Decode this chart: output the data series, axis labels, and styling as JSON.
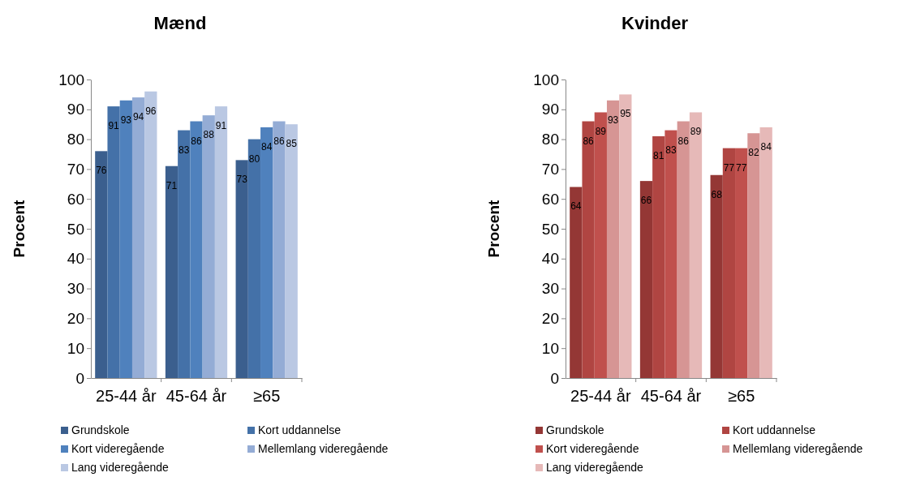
{
  "chart_data": [
    {
      "type": "bar",
      "title": "Mænd",
      "ylabel": "Procent",
      "categories": [
        "25-44 år",
        "45-64 år",
        "≥65"
      ],
      "ylim": [
        0,
        100
      ],
      "yticks": [
        0,
        10,
        20,
        30,
        40,
        50,
        60,
        70,
        80,
        90,
        100
      ],
      "grid": false,
      "legend": "bottom",
      "data_labels": true,
      "series": [
        {
          "name": "Grundskole",
          "color": "#3b5f8e",
          "values": [
            76,
            71,
            73
          ]
        },
        {
          "name": "Kort uddannelse",
          "color": "#4471a8",
          "values": [
            91,
            83,
            80
          ]
        },
        {
          "name": "Kort videregående",
          "color": "#4f81bd",
          "values": [
            93,
            86,
            84
          ]
        },
        {
          "name": "Mellemlang videregående",
          "color": "#94acd5",
          "values": [
            94,
            88,
            86
          ]
        },
        {
          "name": "Lang videregående",
          "color": "#bac8e3",
          "values": [
            96,
            91,
            85
          ]
        }
      ]
    },
    {
      "type": "bar",
      "title": "Kvinder",
      "ylabel": "Procent",
      "categories": [
        "25-44 år",
        "45-64 år",
        "≥65"
      ],
      "ylim": [
        0,
        100
      ],
      "yticks": [
        0,
        10,
        20,
        30,
        40,
        50,
        60,
        70,
        80,
        90,
        100
      ],
      "grid": false,
      "legend": "bottom",
      "data_labels": true,
      "series": [
        {
          "name": "Grundskole",
          "color": "#943735",
          "values": [
            64,
            66,
            68
          ]
        },
        {
          "name": "Kort uddannelse",
          "color": "#b04542",
          "values": [
            86,
            81,
            77
          ]
        },
        {
          "name": "Kort videregående",
          "color": "#c0504d",
          "values": [
            89,
            83,
            77
          ]
        },
        {
          "name": "Mellemlang videregående",
          "color": "#d69594",
          "values": [
            93,
            86,
            82
          ]
        },
        {
          "name": "Lang videregående",
          "color": "#e6b9b8",
          "values": [
            95,
            89,
            84
          ]
        }
      ]
    }
  ]
}
